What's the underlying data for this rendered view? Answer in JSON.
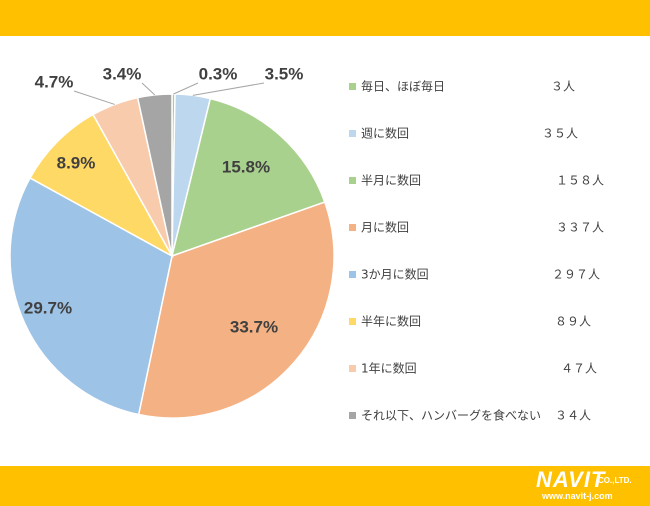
{
  "colors": {
    "bar": "#FFC000",
    "text": "#404040"
  },
  "logo": {
    "name": "NAVIT",
    "suffix": "CO.,LTD.",
    "url": "www.navit-j.com"
  },
  "chart_data": {
    "type": "pie",
    "title": "",
    "start_angle_deg": 0,
    "direction": "clockwise",
    "legend_placement": "right",
    "slices": [
      {
        "name": "毎日、ほぼ毎日",
        "percent": 0.3,
        "percent_label": "0.3%",
        "count_label": "３人",
        "color": "#A9D18E"
      },
      {
        "name": "週に数回",
        "percent": 3.5,
        "percent_label": "3.5%",
        "count_label": "３５人",
        "color": "#BDD7EE"
      },
      {
        "name": "半月に数回",
        "percent": 15.8,
        "percent_label": "15.8%",
        "count_label": "１５８人",
        "color": "#A9D18E"
      },
      {
        "name": "月に数回",
        "percent": 33.7,
        "percent_label": "33.7%",
        "count_label": "３３７人",
        "color": "#F4B183"
      },
      {
        "name": "3か月に数回",
        "percent": 29.7,
        "percent_label": "29.7%",
        "count_label": "２９７人",
        "color": "#9DC3E6"
      },
      {
        "name": "半年に数回",
        "percent": 8.9,
        "percent_label": "8.9%",
        "count_label": "８９人",
        "color": "#FFD966"
      },
      {
        "name": "1年に数回",
        "percent": 4.7,
        "percent_label": "4.7%",
        "count_label": "４７人",
        "color": "#F8CBAD"
      },
      {
        "name": "それ以下、ハンバーグを食べない",
        "percent": 3.4,
        "percent_label": "3.4%",
        "count_label": "３４人",
        "color": "#A5A5A5"
      }
    ]
  }
}
